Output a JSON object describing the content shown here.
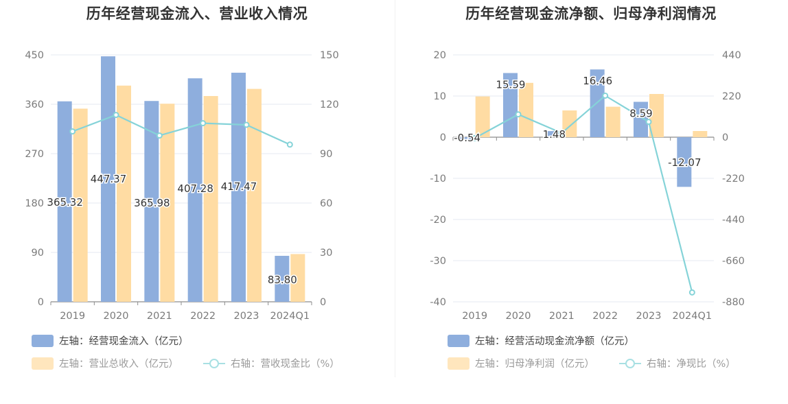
{
  "colors": {
    "bar_primary": "#8eaedd",
    "bar_secondary": "#ffdca3",
    "line": "#85d3d8",
    "grid": "#e6e9f0",
    "axis_text": "#7a7a7a",
    "title_text": "#333333"
  },
  "chart_data": [
    {
      "type": "bar",
      "title": "历年经营现金流入、营业收入情况",
      "categories": [
        "2019",
        "2020",
        "2021",
        "2022",
        "2023",
        "2024Q1"
      ],
      "y_left": {
        "ylim": [
          0,
          450
        ],
        "ticks": [
          "0",
          "90",
          "180",
          "270",
          "360",
          "450"
        ]
      },
      "y_right": {
        "ylim": [
          0,
          150
        ],
        "ticks": [
          "0",
          "30",
          "60",
          "90",
          "120",
          "150"
        ]
      },
      "series": [
        {
          "name": "左轴：经营现金流入（亿元）",
          "kind": "bar",
          "axis": "left",
          "values": [
            365.32,
            447.37,
            365.98,
            407.28,
            417.47,
            83.8
          ],
          "labels": [
            "365.32",
            "447.37",
            "365.98",
            "407.28",
            "417.47",
            "83.80"
          ]
        },
        {
          "name": "左轴：营业总收入（亿元）",
          "kind": "bar",
          "axis": "left",
          "values": [
            352,
            394,
            361,
            375,
            388,
            87
          ]
        },
        {
          "name": "右轴：营收现金比（%）",
          "kind": "line",
          "axis": "right",
          "values": [
            103.5,
            113.5,
            101.0,
            108.5,
            107.5,
            95.5
          ]
        }
      ],
      "legend": {
        "row1": [
          "左轴：经营现金流入（亿元）"
        ],
        "row2": [
          "左轴：营业总收入（亿元）",
          "右轴：营收现金比（%）"
        ]
      }
    },
    {
      "type": "bar",
      "title": "历年经营现金流净额、归母净利润情况",
      "categories": [
        "2019",
        "2020",
        "2021",
        "2022",
        "2023",
        "2024Q1"
      ],
      "y_left": {
        "ylim": [
          -40,
          20
        ],
        "ticks": [
          "-40",
          "-30",
          "-20",
          "-10",
          "0",
          "10",
          "20"
        ]
      },
      "y_right": {
        "ylim": [
          -880,
          440
        ],
        "ticks": [
          "-880",
          "-660",
          "-440",
          "-220",
          "0",
          "220",
          "440"
        ]
      },
      "series": [
        {
          "name": "左轴：经营活动现金流净额（亿元）",
          "kind": "bar",
          "axis": "left",
          "values": [
            -0.54,
            15.59,
            1.48,
            16.46,
            8.59,
            -12.07
          ],
          "labels": [
            "-0.54",
            "15.59",
            "1.48",
            "16.46",
            "8.59",
            "-12.07"
          ]
        },
        {
          "name": "左轴：归母净利润（亿元）",
          "kind": "bar",
          "axis": "left",
          "values": [
            9.9,
            13.2,
            6.5,
            7.4,
            10.5,
            1.5
          ]
        },
        {
          "name": "右轴：净现比（%）",
          "kind": "line",
          "axis": "right",
          "values": [
            -5,
            122,
            22,
            222,
            82,
            -830
          ]
        }
      ],
      "legend": {
        "row1": [
          "左轴：经营活动现金流净额（亿元）"
        ],
        "row2": [
          "左轴：归母净利润（亿元）",
          "右轴：净现比（%）"
        ]
      }
    }
  ]
}
